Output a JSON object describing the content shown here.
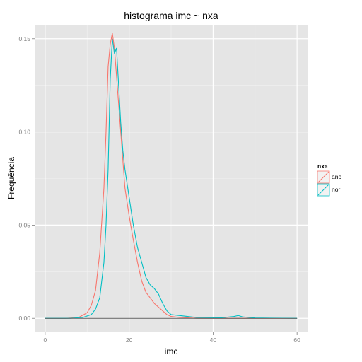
{
  "chart_data": {
    "type": "line",
    "title": "histograma imc ~ nxa",
    "xlabel": "imc",
    "ylabel": "Frequência",
    "xlim": [
      -2.5,
      62.5
    ],
    "ylim": [
      -0.0075,
      0.1575
    ],
    "x_ticks": [
      0,
      20,
      40,
      60
    ],
    "y_ticks": [
      0.0,
      0.05,
      0.1,
      0.15
    ],
    "x_tick_labels": [
      "0",
      "20",
      "40",
      "60"
    ],
    "y_tick_labels": [
      "0.00",
      "0.05",
      "0.10",
      "0.15"
    ],
    "grid": true,
    "legend": {
      "title": "nxa",
      "position": "right"
    },
    "series": [
      {
        "name": "ano",
        "color": "#F8766D",
        "points": [
          [
            0,
            0
          ],
          [
            5,
            0
          ],
          [
            8,
            0.0005
          ],
          [
            10,
            0.003
          ],
          [
            11,
            0.007
          ],
          [
            12,
            0.015
          ],
          [
            13,
            0.035
          ],
          [
            14,
            0.07
          ],
          [
            14.5,
            0.1
          ],
          [
            15,
            0.135
          ],
          [
            15.5,
            0.147
          ],
          [
            16,
            0.153
          ],
          [
            16.5,
            0.145
          ],
          [
            17,
            0.13
          ],
          [
            17.5,
            0.115
          ],
          [
            18,
            0.1
          ],
          [
            18.5,
            0.085
          ],
          [
            19,
            0.07
          ],
          [
            20,
            0.055
          ],
          [
            21,
            0.042
          ],
          [
            22,
            0.03
          ],
          [
            23,
            0.02
          ],
          [
            24,
            0.014
          ],
          [
            25,
            0.011
          ],
          [
            26,
            0.008
          ],
          [
            27,
            0.006
          ],
          [
            28,
            0.004
          ],
          [
            29,
            0.002
          ],
          [
            30,
            0.001
          ],
          [
            32,
            0.0005
          ],
          [
            36,
            0
          ],
          [
            60,
            0
          ]
        ]
      },
      {
        "name": "nor",
        "color": "#00BFC4",
        "points": [
          [
            0,
            0
          ],
          [
            6,
            0
          ],
          [
            9,
            0.0005
          ],
          [
            11,
            0.002
          ],
          [
            12,
            0.005
          ],
          [
            13,
            0.011
          ],
          [
            14,
            0.03
          ],
          [
            14.5,
            0.05
          ],
          [
            15,
            0.08
          ],
          [
            15.5,
            0.128
          ],
          [
            16,
            0.15
          ],
          [
            16.5,
            0.142
          ],
          [
            17,
            0.145
          ],
          [
            17.5,
            0.125
          ],
          [
            18,
            0.105
          ],
          [
            18.5,
            0.09
          ],
          [
            19,
            0.08
          ],
          [
            20,
            0.065
          ],
          [
            21,
            0.05
          ],
          [
            22,
            0.038
          ],
          [
            23,
            0.03
          ],
          [
            24,
            0.022
          ],
          [
            25,
            0.018
          ],
          [
            26,
            0.016
          ],
          [
            27,
            0.013
          ],
          [
            28,
            0.008
          ],
          [
            29,
            0.004
          ],
          [
            30,
            0.002
          ],
          [
            32,
            0.0015
          ],
          [
            36,
            0.0005
          ],
          [
            42,
            0.0003
          ],
          [
            45,
            0.001
          ],
          [
            46,
            0.0015
          ],
          [
            47,
            0.0008
          ],
          [
            50,
            0.0002
          ],
          [
            60,
            0
          ]
        ]
      }
    ]
  }
}
